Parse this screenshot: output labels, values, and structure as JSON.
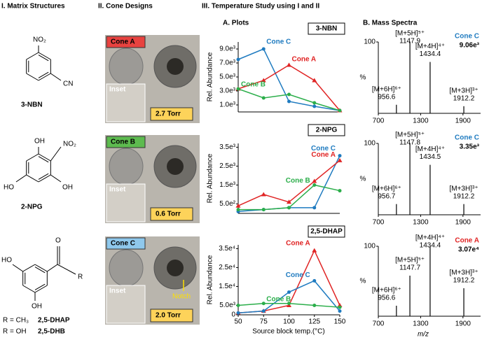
{
  "headers": [
    "I. Matrix Structures",
    "II. Cone Designs",
    "III. Temperature Study using I and II"
  ],
  "subheaders": [
    "A. Plots",
    "B. Mass Spectra"
  ],
  "matrices": [
    {
      "substituents": [
        "NO₂",
        "CN"
      ],
      "name": "3-NBN"
    },
    {
      "substituents": [
        "OH",
        "NO₂",
        "OH",
        "HO"
      ],
      "name": "2-NPG"
    },
    {
      "substituents": [
        "O",
        "R",
        "HO",
        "OH"
      ],
      "variants": [
        [
          "R = CH₃",
          "2,5-DHAP"
        ],
        [
          "R = OH",
          "2,5-DHB"
        ]
      ]
    }
  ],
  "cones": [
    {
      "name": "Cone A",
      "color": "#e8423f",
      "inset": "Inset",
      "pressure": "2.7 Torr"
    },
    {
      "name": "Cone B",
      "color": "#5dbb4f",
      "inset": "Inset",
      "pressure": "0.6 Torr"
    },
    {
      "name": "Cone C",
      "color": "#8fc8ec",
      "inset": "Inset",
      "pressure": "2.0 Torr",
      "note": "Notch"
    }
  ],
  "plots": [
    {
      "type": "line",
      "title": "3-NBN",
      "ylabel": "Rel. Abundance",
      "x": [
        50,
        75,
        100,
        125,
        150
      ],
      "xlim": [
        50,
        150
      ],
      "ylim": [
        0,
        10000
      ],
      "yticks": [
        {
          "value": 1000,
          "label": "1.0e³"
        },
        {
          "value": 3000,
          "label": "3.0e³"
        },
        {
          "value": 5000,
          "label": "5.0e³"
        },
        {
          "value": 7000,
          "label": "7.0e³"
        },
        {
          "value": 9000,
          "label": "9.0e³"
        }
      ],
      "series": [
        {
          "name": "Cone C",
          "color": "#1f7bc0",
          "marker": "circle",
          "values": [
            7500,
            9000,
            1500,
            800,
            200
          ]
        },
        {
          "name": "Cone A",
          "color": "#e02424",
          "marker": "triangle",
          "values": [
            3300,
            4500,
            6700,
            4500,
            200
          ]
        },
        {
          "name": "Cone B",
          "color": "#2bae4a",
          "marker": "circle",
          "values": [
            3300,
            2000,
            2500,
            1300,
            200
          ]
        }
      ]
    },
    {
      "type": "line",
      "title": "2-NPG",
      "ylabel": "Rel. Abundance",
      "x": [
        50,
        75,
        100,
        125,
        150
      ],
      "xlim": [
        50,
        150
      ],
      "ylim": [
        0,
        3700
      ],
      "yticks": [
        {
          "value": 500,
          "label": "5.0e²"
        },
        {
          "value": 1500,
          "label": "1.5e³"
        },
        {
          "value": 2500,
          "label": "2.5e³"
        },
        {
          "value": 3500,
          "label": "3.5e³"
        }
      ],
      "series": [
        {
          "name": "Cone C",
          "color": "#1f7bc0",
          "marker": "circle",
          "values": [
            100,
            200,
            300,
            300,
            3050
          ]
        },
        {
          "name": "Cone A",
          "color": "#e02424",
          "marker": "triangle",
          "values": [
            400,
            1000,
            600,
            1700,
            2800
          ]
        },
        {
          "name": "Cone B",
          "color": "#2bae4a",
          "marker": "circle",
          "values": [
            200,
            200,
            300,
            1500,
            1200
          ]
        }
      ]
    },
    {
      "type": "line",
      "title": "2,5-DHAP",
      "ylabel": "Rel. Abundance",
      "xlabel": "Source block temp.(°C)",
      "x": [
        50,
        75,
        100,
        125,
        150
      ],
      "xlim": [
        50,
        150
      ],
      "xticks": [
        50,
        75,
        100,
        125,
        150
      ],
      "ylim": [
        0,
        37000
      ],
      "yticks": [
        0,
        {
          "value": 5000,
          "label": "5.0e³"
        },
        {
          "value": 15000,
          "label": "1.5e⁴"
        },
        {
          "value": 25000,
          "label": "2.5e⁴"
        },
        {
          "value": 35000,
          "label": "3.5e⁴"
        }
      ],
      "series": [
        {
          "name": "Cone A",
          "color": "#e02424",
          "marker": "triangle",
          "values": [
            1000,
            2000,
            5000,
            34000,
            5000
          ]
        },
        {
          "name": "Cone C",
          "color": "#1f7bc0",
          "marker": "circle",
          "values": [
            1000,
            2000,
            12000,
            18000,
            2000
          ]
        },
        {
          "name": "Cone B",
          "color": "#2bae4a",
          "marker": "circle",
          "values": [
            5000,
            6000,
            6000,
            5000,
            4000
          ]
        }
      ]
    }
  ],
  "spectra": [
    {
      "ylabel": "%",
      "cone": "Cone C",
      "cone_color": "#1f7bc0",
      "intensity": "9.06e³",
      "xlim": [
        700,
        2150
      ],
      "xticks": [
        700,
        1300,
        1900
      ],
      "ylim": [
        0,
        100
      ],
      "yticks": [
        100
      ],
      "peaks": [
        {
          "ion": "[M+5H]⁵⁺",
          "mz": 1147.9,
          "intensity": 100
        },
        {
          "ion": "[M+4H]⁴⁺",
          "mz": 1434.4,
          "intensity": 72
        },
        {
          "ion": "[M+6H]⁶⁺",
          "mz": 956.6,
          "intensity": 12
        },
        {
          "ion": "[M+3H]³⁺",
          "mz": 1912.2,
          "intensity": 10
        }
      ]
    },
    {
      "ylabel": "%",
      "cone": "Cone C",
      "cone_color": "#1f7bc0",
      "intensity": "3.35e³",
      "xlim": [
        700,
        2150
      ],
      "xticks": [
        700,
        1300,
        1900
      ],
      "ylim": [
        0,
        100
      ],
      "yticks": [
        100
      ],
      "peaks": [
        {
          "ion": "[M+5H]⁵⁺",
          "mz": 1147.8,
          "intensity": 100
        },
        {
          "ion": "[M+4H]⁴⁺",
          "mz": 1434.5,
          "intensity": 70
        },
        {
          "ion": "[M+6H]⁶⁺",
          "mz": 956.7,
          "intensity": 15
        },
        {
          "ion": "[M+3H]³⁺",
          "mz": 1912.2,
          "intensity": 15
        }
      ]
    },
    {
      "ylabel": "%",
      "xlabel": "m/z",
      "cone": "Cone A",
      "cone_color": "#e02424",
      "intensity": "3.07e⁴",
      "xlim": [
        700,
        2150
      ],
      "xticks": [
        700,
        1300,
        1900
      ],
      "ylim": [
        0,
        100
      ],
      "yticks": [
        100
      ],
      "peaks": [
        {
          "ion": "[M+4H]⁴⁺",
          "mz": 1434.4,
          "intensity": 100
        },
        {
          "ion": "[M+5H]⁵⁺",
          "mz": 1147.7,
          "intensity": 58
        },
        {
          "ion": "[M+6H]⁶⁺",
          "mz": 956.6,
          "intensity": 15
        },
        {
          "ion": "[M+3H]³⁺",
          "mz": 1912.2,
          "intensity": 40
        }
      ]
    }
  ]
}
